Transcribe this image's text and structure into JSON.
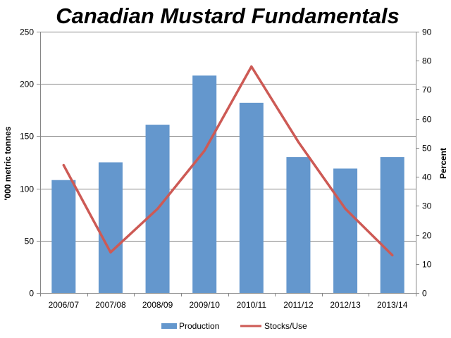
{
  "chart_data": {
    "type": "bar",
    "title": "Canadian Mustard Fundamentals",
    "categories": [
      "2006/07",
      "2007/08",
      "2008/09",
      "2009/10",
      "2010/11",
      "2011/12",
      "2012/13",
      "2013/14"
    ],
    "series": [
      {
        "name": "Production",
        "type": "bar",
        "axis": "left",
        "color": "#6497CD",
        "values": [
          108,
          125,
          161,
          208,
          182,
          130,
          119,
          130
        ]
      },
      {
        "name": "Stocks/Use",
        "type": "line",
        "axis": "right",
        "color": "#CD5A55",
        "values": [
          44,
          14,
          29,
          49,
          78,
          52,
          29,
          13
        ]
      }
    ],
    "ylabel": "'000 metric tonnes",
    "y2label": "Percent",
    "ylim": [
      0,
      250
    ],
    "yticks": [
      0,
      50,
      100,
      150,
      200,
      250
    ],
    "y2lim": [
      0,
      90
    ],
    "y2ticks": [
      0,
      10,
      20,
      30,
      40,
      50,
      60,
      70,
      80,
      90
    ],
    "grid": "horizontal",
    "legend": "bottom"
  }
}
